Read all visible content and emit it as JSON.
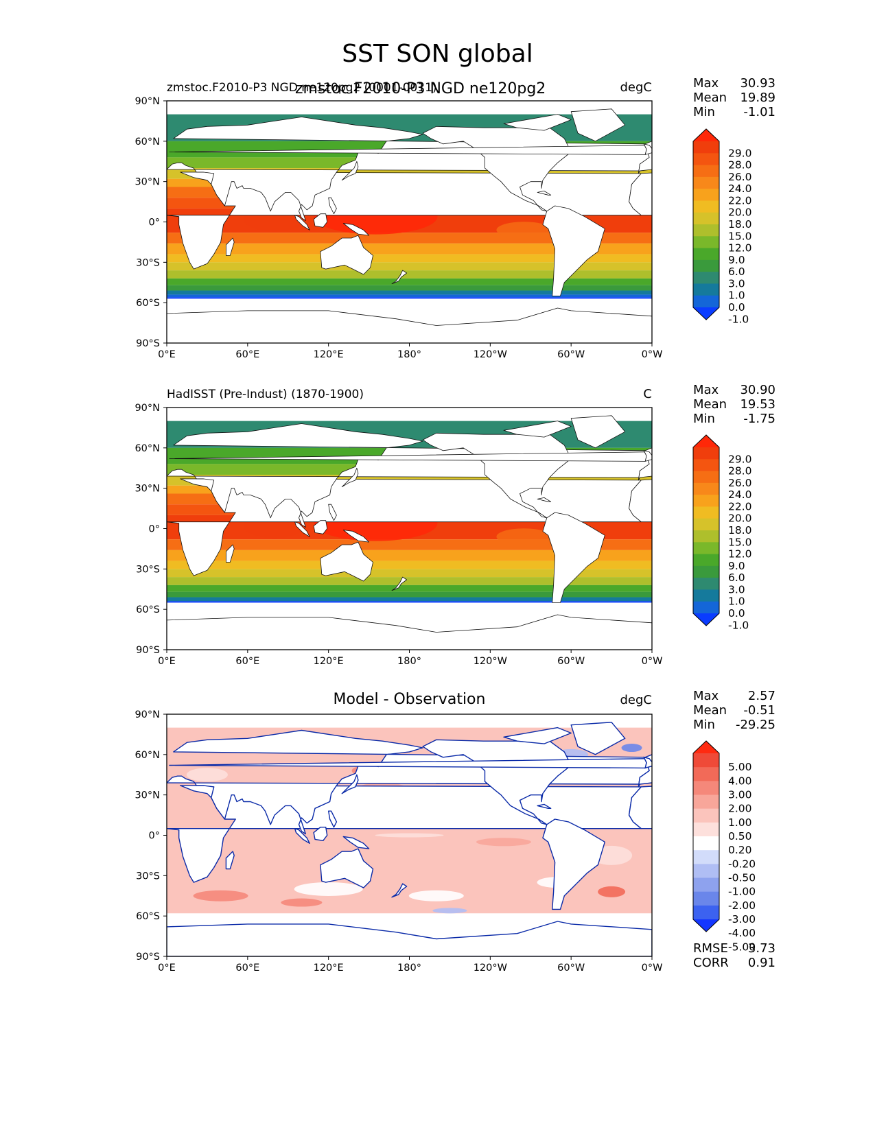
{
  "figure": {
    "title": "SST SON global",
    "overlay_title": "zmstoc.F2010-P3 NGD ne120pg2"
  },
  "colors": {
    "land": "#ffffff",
    "coast": "#111111",
    "coast_diff": "#0a2aa8",
    "frame": "#000000",
    "sst_scale": [
      "#0a3cff",
      "#1466d8",
      "#157a9c",
      "#2e8a70",
      "#3a9a3c",
      "#4aa82a",
      "#7ab82a",
      "#aebf2c",
      "#d6c22a",
      "#f0bc22",
      "#f8a21c",
      "#f8881a",
      "#f66e14",
      "#f45510",
      "#f03e0c",
      "#ff2808"
    ],
    "diff_scale": [
      "#1436ff",
      "#3c62f0",
      "#6a86ea",
      "#8ea2ee",
      "#b0bef4",
      "#d2dcfa",
      "#ffffff",
      "#fde0dc",
      "#fbc4bc",
      "#f8a69a",
      "#f5887a",
      "#f26a58",
      "#ef4a38",
      "#ff2a10"
    ]
  },
  "chart_data": [
    {
      "type": "heatmap",
      "panel": "model",
      "title_left": "zmstoc.F2010-P3 NGD ne120pg2 (0001-0011)",
      "title_right": "degC",
      "stats": {
        "max_label": "Max",
        "max": "30.93",
        "mean_label": "Mean",
        "mean": "19.89",
        "min_label": "Min",
        "min": "-1.01"
      },
      "xticks": [
        "0°E",
        "60°E",
        "120°E",
        "180°",
        "120°W",
        "60°W",
        "0°W"
      ],
      "yticks": [
        "90°N",
        "60°N",
        "30°N",
        "0°",
        "30°S",
        "60°S",
        "90°S"
      ],
      "xlim": [
        0,
        360
      ],
      "ylim": [
        -90,
        90
      ],
      "colorbar_levels": [
        "29.0",
        "28.0",
        "26.0",
        "24.0",
        "22.0",
        "20.0",
        "18.0",
        "15.0",
        "12.0",
        "9.0",
        "6.0",
        "3.0",
        "1.0",
        "0.0",
        "-1.0"
      ],
      "ice_edge_south": -56
    },
    {
      "type": "heatmap",
      "panel": "observation",
      "title_left": "HadISST (Pre-Indust) (1870-1900)",
      "title_right": "C",
      "stats": {
        "max_label": "Max",
        "max": "30.90",
        "mean_label": "Mean",
        "mean": "19.53",
        "min_label": "Min",
        "min": "-1.75"
      },
      "xticks": [
        "0°E",
        "60°E",
        "120°E",
        "180°",
        "120°W",
        "60°W",
        "0°W"
      ],
      "yticks": [
        "90°N",
        "60°N",
        "30°N",
        "0°",
        "30°S",
        "60°S",
        "90°S"
      ],
      "xlim": [
        0,
        360
      ],
      "ylim": [
        -90,
        90
      ],
      "colorbar_levels": [
        "29.0",
        "28.0",
        "26.0",
        "24.0",
        "22.0",
        "20.0",
        "18.0",
        "15.0",
        "12.0",
        "9.0",
        "6.0",
        "3.0",
        "1.0",
        "0.0",
        "-1.0"
      ],
      "ice_edge_south": -54
    },
    {
      "type": "heatmap",
      "panel": "difference",
      "title_center": "Model - Observation",
      "title_right": "degC",
      "stats": {
        "max_label": "Max",
        "max": "2.57",
        "mean_label": "Mean",
        "mean": "-0.51",
        "min_label": "Min",
        "min": "-29.25"
      },
      "xticks": [
        "0°E",
        "60°E",
        "120°E",
        "180°",
        "120°W",
        "60°W",
        "0°W"
      ],
      "yticks": [
        "90°N",
        "60°N",
        "30°N",
        "0°",
        "30°S",
        "60°S",
        "90°S"
      ],
      "xlim": [
        0,
        360
      ],
      "ylim": [
        -90,
        90
      ],
      "colorbar_levels": [
        "5.00",
        "4.00",
        "3.00",
        "2.00",
        "1.00",
        "0.50",
        "0.20",
        "-0.20",
        "-0.50",
        "-1.00",
        "-2.00",
        "-3.00",
        "-4.00",
        "-5.00"
      ],
      "rmse_label": "RMSE",
      "rmse": "3.73",
      "corr_label": "CORR",
      "corr": "0.91"
    }
  ]
}
